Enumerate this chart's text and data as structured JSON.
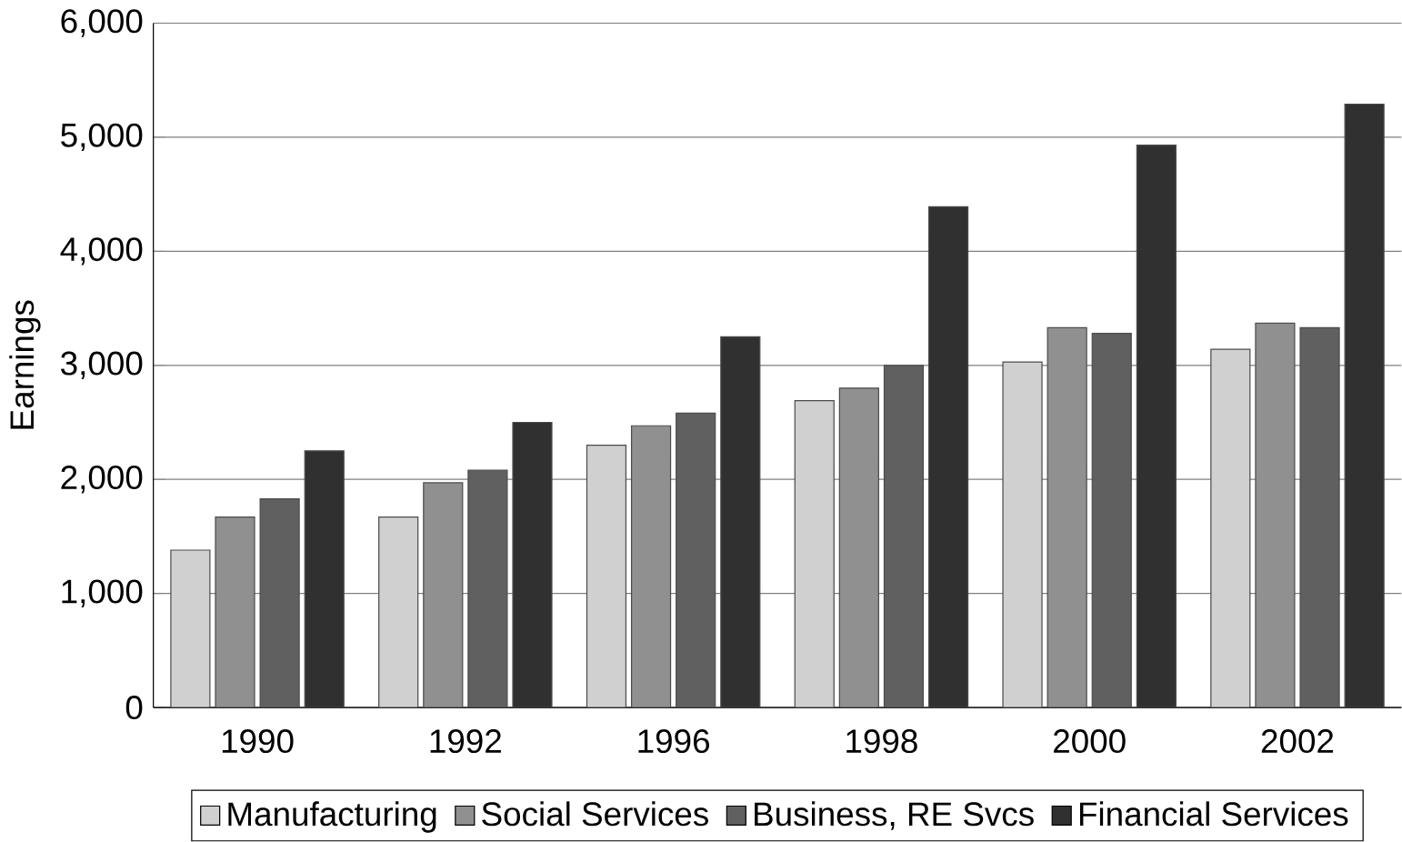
{
  "chart_data": {
    "type": "bar",
    "ylabel": "Earnings",
    "categories": [
      "1990",
      "1992",
      "1996",
      "1998",
      "2000",
      "2002"
    ],
    "series": [
      {
        "name": "Manufacturing",
        "color": "#d0d0d0",
        "values": [
          1380,
          1670,
          2300,
          2690,
          3030,
          3140
        ]
      },
      {
        "name": "Social Services",
        "color": "#909090",
        "values": [
          1670,
          1970,
          2470,
          2800,
          3330,
          3370
        ]
      },
      {
        "name": "Business, RE Svcs",
        "color": "#606060",
        "values": [
          1830,
          2080,
          2580,
          3000,
          3280,
          3330
        ]
      },
      {
        "name": "Financial Services",
        "color": "#303030",
        "values": [
          2250,
          2500,
          3250,
          4390,
          4930,
          5290
        ]
      }
    ],
    "ylim": [
      0,
      6000
    ],
    "yticks": [
      {
        "value": 0,
        "label": "0"
      },
      {
        "value": 1000,
        "label": "1,000"
      },
      {
        "value": 2000,
        "label": "2,000"
      },
      {
        "value": 3000,
        "label": "3,000"
      },
      {
        "value": 4000,
        "label": "4,000"
      },
      {
        "value": 5000,
        "label": "5,000"
      },
      {
        "value": 6000,
        "label": "6,000"
      }
    ],
    "grid": "y",
    "legend": "bottom"
  }
}
